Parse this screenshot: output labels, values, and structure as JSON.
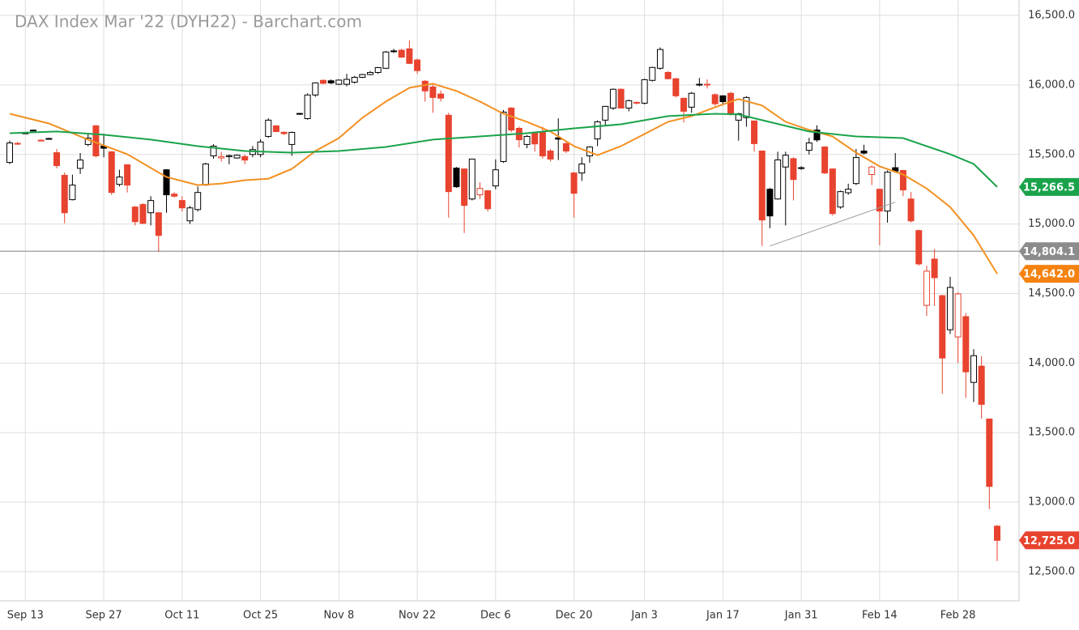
{
  "chart_data": {
    "type": "candlestick",
    "title": "DAX Index Mar '22 (DYH22) - Barchart.com",
    "up_color": "#000000",
    "down_color": "#e8432e",
    "categories": [
      null,
      null,
      "Sep 13",
      null,
      null,
      null,
      null,
      null,
      null,
      null,
      null,
      null,
      "Sep 27",
      null,
      null,
      null,
      null,
      null,
      null,
      null,
      null,
      null,
      "Oct 11",
      null,
      null,
      null,
      null,
      null,
      null,
      null,
      null,
      null,
      "Oct 25",
      null,
      null,
      null,
      null,
      null,
      null,
      null,
      null,
      null,
      "Nov 8",
      null,
      null,
      null,
      null,
      null,
      null,
      null,
      null,
      null,
      "Nov 22",
      null,
      null,
      null,
      null,
      null,
      null,
      null,
      null,
      null,
      "Dec 6",
      null,
      null,
      null,
      null,
      null,
      null,
      null,
      null,
      null,
      "Dec 20",
      null,
      null,
      null,
      null,
      null,
      null,
      null,
      null,
      "Jan 3",
      null,
      null,
      null,
      null,
      null,
      null,
      null,
      null,
      null,
      "Jan 17",
      null,
      null,
      null,
      null,
      null,
      null,
      null,
      null,
      null,
      "Jan 31",
      null,
      null,
      null,
      null,
      null,
      null,
      null,
      null,
      null,
      "Feb 14",
      null,
      null,
      null,
      null,
      null,
      null,
      null,
      null,
      null,
      "Feb 28",
      null,
      null,
      null,
      null,
      null
    ],
    "ohlc": [
      [
        15443,
        15600,
        15430,
        15583
      ],
      [
        15575,
        15590,
        15570,
        15580
      ],
      [
        15652,
        15660,
        15648,
        15655
      ],
      [
        15672,
        15680,
        15668,
        15675
      ],
      [
        15603,
        15608,
        15595,
        15600
      ],
      [
        15612,
        15620,
        15610,
        15615
      ],
      [
        15513,
        15540,
        15400,
        15420
      ],
      [
        15350,
        15370,
        15005,
        15081
      ],
      [
        15175,
        15355,
        15170,
        15280
      ],
      [
        15400,
        15510,
        15360,
        15460
      ],
      [
        15572,
        15650,
        15560,
        15618
      ],
      [
        15706,
        15712,
        15480,
        15490
      ],
      [
        15560,
        15650,
        15480,
        15545
      ],
      [
        15519,
        15525,
        15210,
        15227
      ],
      [
        15285,
        15390,
        15270,
        15338
      ],
      [
        15426,
        15430,
        15227,
        15280
      ],
      [
        15122,
        15130,
        14990,
        15017
      ],
      [
        15140,
        15150,
        15000,
        15005
      ],
      [
        15081,
        15200,
        14990,
        15169
      ],
      [
        15081,
        15085,
        14800,
        14918
      ],
      [
        15390,
        15395,
        15081,
        15210
      ],
      [
        15215,
        15230,
        15190,
        15200
      ],
      [
        15169,
        15200,
        15090,
        15116
      ],
      [
        15023,
        15130,
        15000,
        15116
      ],
      [
        15104,
        15270,
        15090,
        15227
      ],
      [
        15280,
        15440,
        15275,
        15432
      ],
      [
        15490,
        15575,
        15470,
        15560
      ],
      [
        15475,
        15520,
        15450,
        15485
      ],
      [
        15485,
        15500,
        15430,
        15492
      ],
      [
        15475,
        15500,
        15470,
        15495
      ],
      [
        15485,
        15500,
        15430,
        15460
      ],
      [
        15500,
        15560,
        15480,
        15535
      ],
      [
        15500,
        15610,
        15480,
        15590
      ],
      [
        15630,
        15760,
        15620,
        15747
      ],
      [
        15706,
        15710,
        15660,
        15665
      ],
      [
        15660,
        15665,
        15640,
        15650
      ],
      [
        15572,
        15665,
        15490,
        15659
      ],
      [
        15790,
        15800,
        15785,
        15795
      ],
      [
        15758,
        15940,
        15750,
        15928
      ],
      [
        15928,
        16020,
        15915,
        16015
      ],
      [
        16033,
        16040,
        16005,
        16012
      ],
      [
        16030,
        16040,
        16005,
        16015
      ],
      [
        16005,
        16040,
        16000,
        16035
      ],
      [
        16005,
        16080,
        15990,
        16040
      ],
      [
        16020,
        16065,
        16010,
        16055
      ],
      [
        16055,
        16080,
        16050,
        16075
      ],
      [
        16075,
        16100,
        16070,
        16090
      ],
      [
        16090,
        16130,
        16080,
        16125
      ],
      [
        16120,
        16245,
        16115,
        16237
      ],
      [
        16240,
        16260,
        16230,
        16245
      ],
      [
        16250,
        16260,
        16195,
        16200
      ],
      [
        16260,
        16320,
        16150,
        16155
      ],
      [
        16180,
        16190,
        16080,
        16103
      ],
      [
        16027,
        16035,
        15880,
        15957
      ],
      [
        15986,
        16000,
        15800,
        15910
      ],
      [
        15935,
        15960,
        15880,
        15905
      ],
      [
        15782,
        15800,
        15046,
        15233
      ],
      [
        15402,
        15410,
        15260,
        15268
      ],
      [
        15396,
        15400,
        14935,
        15134
      ],
      [
        15180,
        15470,
        15170,
        15467
      ],
      [
        15210,
        15300,
        15180,
        15256
      ],
      [
        15239,
        15245,
        15090,
        15110
      ],
      [
        15274,
        15465,
        15250,
        15390
      ],
      [
        15449,
        15820,
        15440,
        15805
      ],
      [
        15834,
        15840,
        15660,
        15676
      ],
      [
        15688,
        15700,
        15550,
        15606
      ],
      [
        15572,
        15640,
        15545,
        15630
      ],
      [
        15659,
        15665,
        15520,
        15576
      ],
      [
        15659,
        15700,
        15470,
        15490
      ],
      [
        15525,
        15540,
        15450,
        15467
      ],
      [
        15620,
        15760,
        15460,
        15610
      ],
      [
        15578,
        15590,
        15510,
        15525
      ],
      [
        15367,
        15375,
        15046,
        15221
      ],
      [
        15367,
        15480,
        15310,
        15432
      ],
      [
        15490,
        15560,
        15440,
        15554
      ],
      [
        15612,
        15745,
        15560,
        15735
      ],
      [
        15747,
        15850,
        15710,
        15846
      ],
      [
        15834,
        15975,
        15820,
        15969
      ],
      [
        15969,
        15975,
        15830,
        15834
      ],
      [
        15834,
        15895,
        15810,
        15887
      ],
      [
        15875,
        15880,
        15860,
        15870
      ],
      [
        15869,
        16045,
        15860,
        16038
      ],
      [
        16033,
        16130,
        16025,
        16126
      ],
      [
        16120,
        16270,
        16110,
        16255
      ],
      [
        16090,
        16100,
        16040,
        16045
      ],
      [
        16045,
        16050,
        15910,
        15922
      ],
      [
        15904,
        15910,
        15730,
        15811
      ],
      [
        15840,
        15950,
        15800,
        15940
      ],
      [
        16000,
        16050,
        15990,
        16005
      ],
      [
        16005,
        16040,
        15975,
        16000
      ],
      [
        15930,
        15940,
        15850,
        15865
      ],
      [
        15922,
        15925,
        15860,
        15880
      ],
      [
        15940,
        15950,
        15780,
        15788
      ],
      [
        15747,
        15800,
        15600,
        15793
      ],
      [
        15765,
        15920,
        15700,
        15910
      ],
      [
        15741,
        15745,
        15520,
        15578
      ],
      [
        15525,
        15530,
        14842,
        15029
      ],
      [
        15250,
        15260,
        14970,
        15058
      ],
      [
        15180,
        15520,
        15175,
        15461
      ],
      [
        15410,
        15520,
        14990,
        15495
      ],
      [
        15470,
        15480,
        15170,
        15320
      ],
      [
        15405,
        15415,
        15390,
        15400
      ],
      [
        15530,
        15620,
        15500,
        15583
      ],
      [
        15676,
        15710,
        15590,
        15605
      ],
      [
        15554,
        15560,
        15360,
        15367
      ],
      [
        15396,
        15400,
        15060,
        15075
      ],
      [
        15122,
        15240,
        15110,
        15233
      ],
      [
        15225,
        15290,
        15210,
        15250
      ],
      [
        15291,
        15540,
        15280,
        15478
      ],
      [
        15525,
        15570,
        15500,
        15510
      ],
      [
        15356,
        15420,
        15280,
        15410
      ],
      [
        15250,
        15255,
        14847,
        15093
      ],
      [
        15093,
        15385,
        15010,
        15373
      ],
      [
        15405,
        15510,
        15370,
        15380
      ],
      [
        15385,
        15390,
        15200,
        15245
      ],
      [
        15180,
        15230,
        15010,
        15023
      ],
      [
        14953,
        14960,
        14700,
        14713
      ],
      [
        14415,
        14700,
        14340,
        14661
      ],
      [
        14748,
        14820,
        14410,
        14614
      ],
      [
        14485,
        14490,
        13779,
        14036
      ],
      [
        14240,
        14620,
        14210,
        14544
      ],
      [
        14188,
        14510,
        14000,
        14497
      ],
      [
        14334,
        14360,
        13750,
        13937
      ],
      [
        13861,
        14100,
        13720,
        14053
      ],
      [
        13978,
        14050,
        13600,
        13703
      ],
      [
        13598,
        13600,
        12950,
        13113
      ],
      [
        12827,
        12835,
        12576,
        12725
      ]
    ],
    "series": [
      {
        "color": "#f39021",
        "x": [
          0,
          5,
          10,
          15,
          20,
          24,
          27,
          30,
          33,
          36,
          39,
          42,
          45,
          48,
          51,
          54,
          57,
          60,
          63,
          66,
          69,
          72,
          75,
          78,
          81,
          84,
          87,
          90,
          93,
          96,
          99,
          102,
          105,
          108,
          111,
          114,
          117,
          120,
          123,
          126
        ],
        "values": [
          15793,
          15723,
          15607,
          15502,
          15338,
          15280,
          15291,
          15315,
          15326,
          15396,
          15525,
          15618,
          15764,
          15881,
          15980,
          16009,
          15957,
          15881,
          15793,
          15735,
          15665,
          15560,
          15496,
          15560,
          15647,
          15735,
          15776,
          15840,
          15899,
          15852,
          15735,
          15677,
          15630,
          15513,
          15414,
          15356,
          15256,
          15122,
          14918,
          14642
        ]
      },
      {
        "color": "#1aa34a",
        "x": [
          0,
          6,
          12,
          18,
          24,
          30,
          36,
          42,
          48,
          54,
          60,
          66,
          72,
          78,
          84,
          90,
          93,
          96,
          102,
          108,
          114,
          117,
          120,
          123,
          126
        ],
        "values": [
          15653,
          15665,
          15642,
          15607,
          15560,
          15525,
          15513,
          15525,
          15554,
          15607,
          15630,
          15653,
          15688,
          15717,
          15776,
          15793,
          15788,
          15747,
          15665,
          15630,
          15618,
          15560,
          15502,
          15432,
          15266.5
        ]
      }
    ],
    "trendline": {
      "color": "#999999",
      "x": [
        97,
        113
      ],
      "values": [
        14842,
        15157
      ]
    },
    "hline": {
      "value": 14804.1,
      "color": "#999999"
    },
    "price_tags": [
      {
        "value": 15266.5,
        "label": "15,266.5",
        "color": "#1aa34a"
      },
      {
        "value": 14804.1,
        "label": "14,804.1",
        "color": "#8c8c8c"
      },
      {
        "value": 14642.0,
        "label": "14,642.0",
        "color": "#f5820f"
      },
      {
        "value": 12725.0,
        "label": "12,725.0",
        "color": "#e8432e"
      }
    ],
    "ylim": [
      12290,
      16611
    ],
    "yticks": [
      {
        "value": 12500,
        "label": "12,500.0"
      },
      {
        "value": 13000,
        "label": "13,000.0"
      },
      {
        "value": 13500,
        "label": "13,500.0"
      },
      {
        "value": 14000,
        "label": "14,000.0"
      },
      {
        "value": 14500,
        "label": "14,500.0"
      },
      {
        "value": 15000,
        "label": "15,000.0"
      },
      {
        "value": 15500,
        "label": "15,500.0"
      },
      {
        "value": 16000,
        "label": "16,000.0"
      },
      {
        "value": 16500,
        "label": "16,500.0"
      }
    ],
    "grid": true
  }
}
